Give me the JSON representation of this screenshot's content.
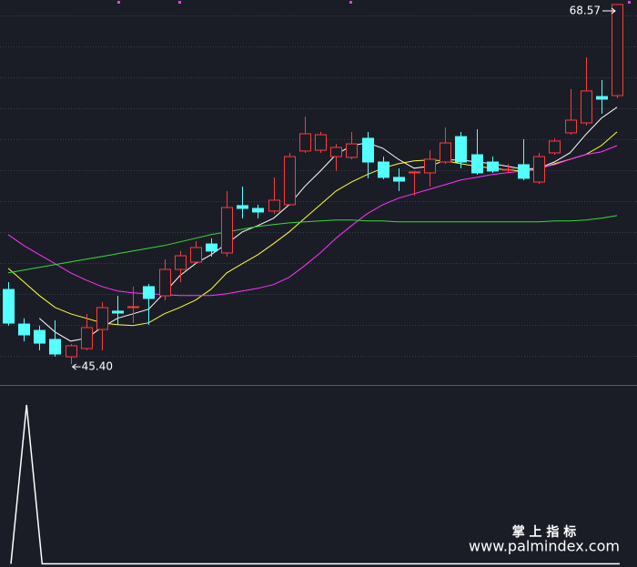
{
  "chart_data": [
    {
      "type": "candlestick",
      "categories": [
        null,
        null,
        null,
        null,
        null,
        null,
        null,
        null,
        null,
        null,
        null,
        null,
        null,
        null,
        null,
        null,
        null,
        null,
        null,
        null,
        null,
        null,
        null,
        null,
        null,
        null,
        null,
        null,
        null,
        null,
        null,
        null,
        null,
        null,
        null,
        null,
        null,
        null,
        null,
        null
      ],
      "open": [
        50.21,
        47.98,
        47.57,
        46.99,
        45.87,
        46.4,
        47.63,
        48.81,
        49.04,
        50.39,
        49.8,
        51.5,
        51.97,
        53.14,
        52.56,
        55.61,
        55.43,
        55.26,
        55.67,
        59.13,
        59.18,
        58.77,
        58.72,
        59.95,
        58.42,
        57.43,
        57.72,
        57.72,
        58.42,
        60.06,
        58.89,
        58.42,
        57.89,
        58.25,
        57.13,
        59.01,
        60.3,
        60.94,
        62.64,
        62.7
      ],
      "high": [
        50.68,
        48.35,
        47.87,
        48.22,
        46.69,
        48.63,
        49.39,
        49.8,
        50.39,
        50.56,
        52.15,
        52.68,
        53.32,
        53.5,
        56.55,
        56.84,
        55.67,
        57.43,
        59.01,
        61.35,
        60.36,
        59.59,
        60.36,
        60.36,
        58.77,
        58.01,
        57.84,
        59.18,
        60.65,
        60.36,
        60.53,
        58.77,
        58.3,
        59.89,
        59.01,
        59.95,
        63.11,
        65.17,
        63.7,
        68.57
      ],
      "low": [
        47.87,
        46.87,
        46.28,
        45.87,
        45.4,
        46.28,
        46.28,
        47.93,
        48.04,
        47.93,
        49.51,
        50.68,
        51.85,
        52.32,
        52.32,
        54.79,
        54.79,
        55.08,
        55.61,
        59.01,
        59.01,
        57.84,
        58.6,
        57.37,
        57.31,
        56.55,
        56.25,
        56.84,
        58.3,
        58.01,
        57.6,
        57.72,
        57.72,
        57.25,
        57.01,
        58.89,
        60.18,
        60.77,
        61.53,
        62.53
      ],
      "close": [
        48.04,
        47.28,
        46.75,
        46.05,
        46.58,
        47.75,
        49.04,
        48.69,
        49.1,
        49.63,
        51.5,
        52.38,
        52.91,
        52.68,
        55.49,
        55.43,
        55.2,
        55.96,
        58.77,
        60.24,
        60.18,
        59.36,
        59.59,
        58.42,
        57.43,
        57.19,
        57.78,
        58.6,
        59.65,
        58.42,
        57.72,
        57.84,
        57.95,
        57.37,
        58.77,
        59.77,
        61.12,
        63.0,
        62.47,
        68.57
      ],
      "up_color": "#ff3b3b",
      "down_color": "#54ffff",
      "ylim": [
        44.23,
        68.86
      ],
      "series": [
        {
          "color": "#ffffff",
          "values": [
            null,
            null,
            48.35,
            47.47,
            46.88,
            47.06,
            47.76,
            48.35,
            48.64,
            48.94,
            49.99,
            51.1,
            51.87,
            52.45,
            53.16,
            53.92,
            54.33,
            54.8,
            55.67,
            56.85,
            57.84,
            58.9,
            59.48,
            59.66,
            59.31,
            58.6,
            58.02,
            58.14,
            58.55,
            58.55,
            58.43,
            58.31,
            58.14,
            57.96,
            58.02,
            58.43,
            59.02,
            60.19,
            61.24,
            61.95
          ]
        },
        {
          "color": "#ffff33",
          "values": [
            51.57,
            50.69,
            49.81,
            49.05,
            48.64,
            48.35,
            48.06,
            47.94,
            47.88,
            48.06,
            48.64,
            49.05,
            49.52,
            50.23,
            51.28,
            51.87,
            52.45,
            53.16,
            53.92,
            54.8,
            55.67,
            56.55,
            57.14,
            57.61,
            58.02,
            58.31,
            58.49,
            58.55,
            58.49,
            58.31,
            58.14,
            58.02,
            57.9,
            57.84,
            57.96,
            58.31,
            58.6,
            58.9,
            59.48,
            60.36
          ]
        },
        {
          "color": "#ff33ff",
          "values": [
            53.74,
            53.04,
            52.45,
            51.87,
            51.28,
            50.81,
            50.4,
            50.11,
            49.99,
            49.93,
            49.87,
            49.81,
            49.81,
            49.81,
            49.93,
            50.11,
            50.28,
            50.52,
            50.99,
            51.75,
            52.57,
            53.51,
            54.33,
            55.09,
            55.67,
            56.09,
            56.38,
            56.67,
            56.96,
            57.26,
            57.43,
            57.61,
            57.73,
            57.84,
            58.02,
            58.25,
            58.6,
            58.9,
            59.07,
            59.48
          ]
        },
        {
          "color": "#33dd33",
          "values": [
            51.28,
            51.46,
            51.63,
            51.81,
            51.98,
            52.16,
            52.33,
            52.51,
            52.69,
            52.86,
            53.04,
            53.27,
            53.51,
            53.74,
            53.92,
            54.09,
            54.27,
            54.39,
            54.5,
            54.56,
            54.62,
            54.68,
            54.68,
            54.62,
            54.62,
            54.56,
            54.56,
            54.56,
            54.56,
            54.56,
            54.56,
            54.56,
            54.56,
            54.56,
            54.56,
            54.62,
            54.62,
            54.68,
            54.8,
            54.97
          ]
        }
      ],
      "annotations": [
        {
          "value": 68.57,
          "label": "68.57"
        },
        {
          "value": 45.4,
          "label": "45.40"
        }
      ]
    },
    {
      "type": "line",
      "ylim": [
        -0.02,
        1.12
      ],
      "series": [
        {
          "color": "#ffffff",
          "values": [
            0,
            1,
            0,
            0,
            0,
            0,
            0,
            0,
            0,
            0,
            0,
            0,
            0,
            0,
            0,
            0,
            0,
            0,
            0,
            0,
            0,
            0,
            0,
            0,
            0,
            0,
            0,
            0,
            0,
            0,
            0,
            0,
            0,
            0,
            0,
            0,
            0,
            0,
            0,
            0
          ]
        }
      ],
      "watermark": [
        "掌 上 指 标",
        "www.palmindex.com"
      ]
    }
  ]
}
